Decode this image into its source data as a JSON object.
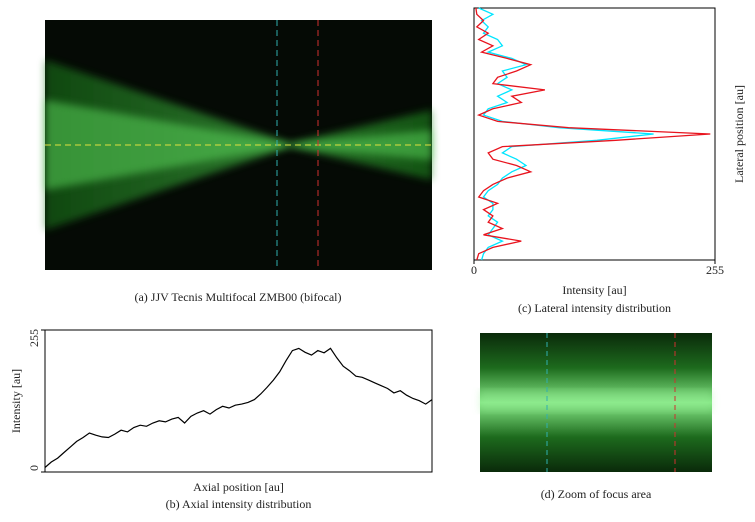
{
  "panels": [
    {
      "caption": "(a) JJV Tecnis Multifocal ZMB00 (bifocal)"
    },
    {
      "caption": "(d) Zoom of focus area"
    }
  ],
  "chart_data": [
    {
      "type": "line",
      "caption": "(b) Axial intensity distribution",
      "x_label": "Axial position [au]",
      "y_label": "Intensity [au]",
      "ylim": [
        0,
        255
      ],
      "yticks": [
        0,
        255
      ],
      "color": "#000000",
      "values": [
        8,
        18,
        25,
        35,
        45,
        55,
        62,
        70,
        66,
        63,
        62,
        68,
        75,
        72,
        80,
        84,
        82,
        88,
        92,
        90,
        95,
        98,
        88,
        100,
        106,
        110,
        104,
        112,
        118,
        115,
        120,
        122,
        125,
        130,
        140,
        152,
        165,
        180,
        200,
        218,
        222,
        215,
        210,
        218,
        214,
        222,
        205,
        190,
        182,
        172,
        170,
        165,
        160,
        155,
        150,
        142,
        146,
        138,
        132,
        128,
        122,
        130
      ]
    },
    {
      "type": "line",
      "orientation": "horizontal",
      "caption": "(c) Lateral intensity distribution",
      "x_label": "Intensity [au]",
      "y_label": "Lateral position [au]",
      "xlim": [
        0,
        255
      ],
      "xticks": [
        0,
        255
      ],
      "series": [
        {
          "color": "#00e5ff",
          "values": [
            5,
            20,
            8,
            15,
            10,
            25,
            30,
            15,
            40,
            55,
            30,
            35,
            25,
            40,
            25,
            35,
            15,
            10,
            30,
            90,
            190,
            130,
            40,
            30,
            45,
            55,
            40,
            30,
            25,
            15,
            10,
            20,
            20,
            15,
            25,
            20,
            15,
            30,
            15,
            10,
            8
          ]
        },
        {
          "color": "#e8141e",
          "values": [
            2,
            3,
            10,
            3,
            15,
            5,
            20,
            8,
            35,
            60,
            45,
            25,
            20,
            75,
            40,
            50,
            20,
            5,
            25,
            100,
            250,
            150,
            30,
            15,
            20,
            45,
            60,
            35,
            20,
            10,
            5,
            25,
            10,
            20,
            15,
            30,
            10,
            50,
            20,
            5,
            3
          ]
        }
      ]
    }
  ]
}
